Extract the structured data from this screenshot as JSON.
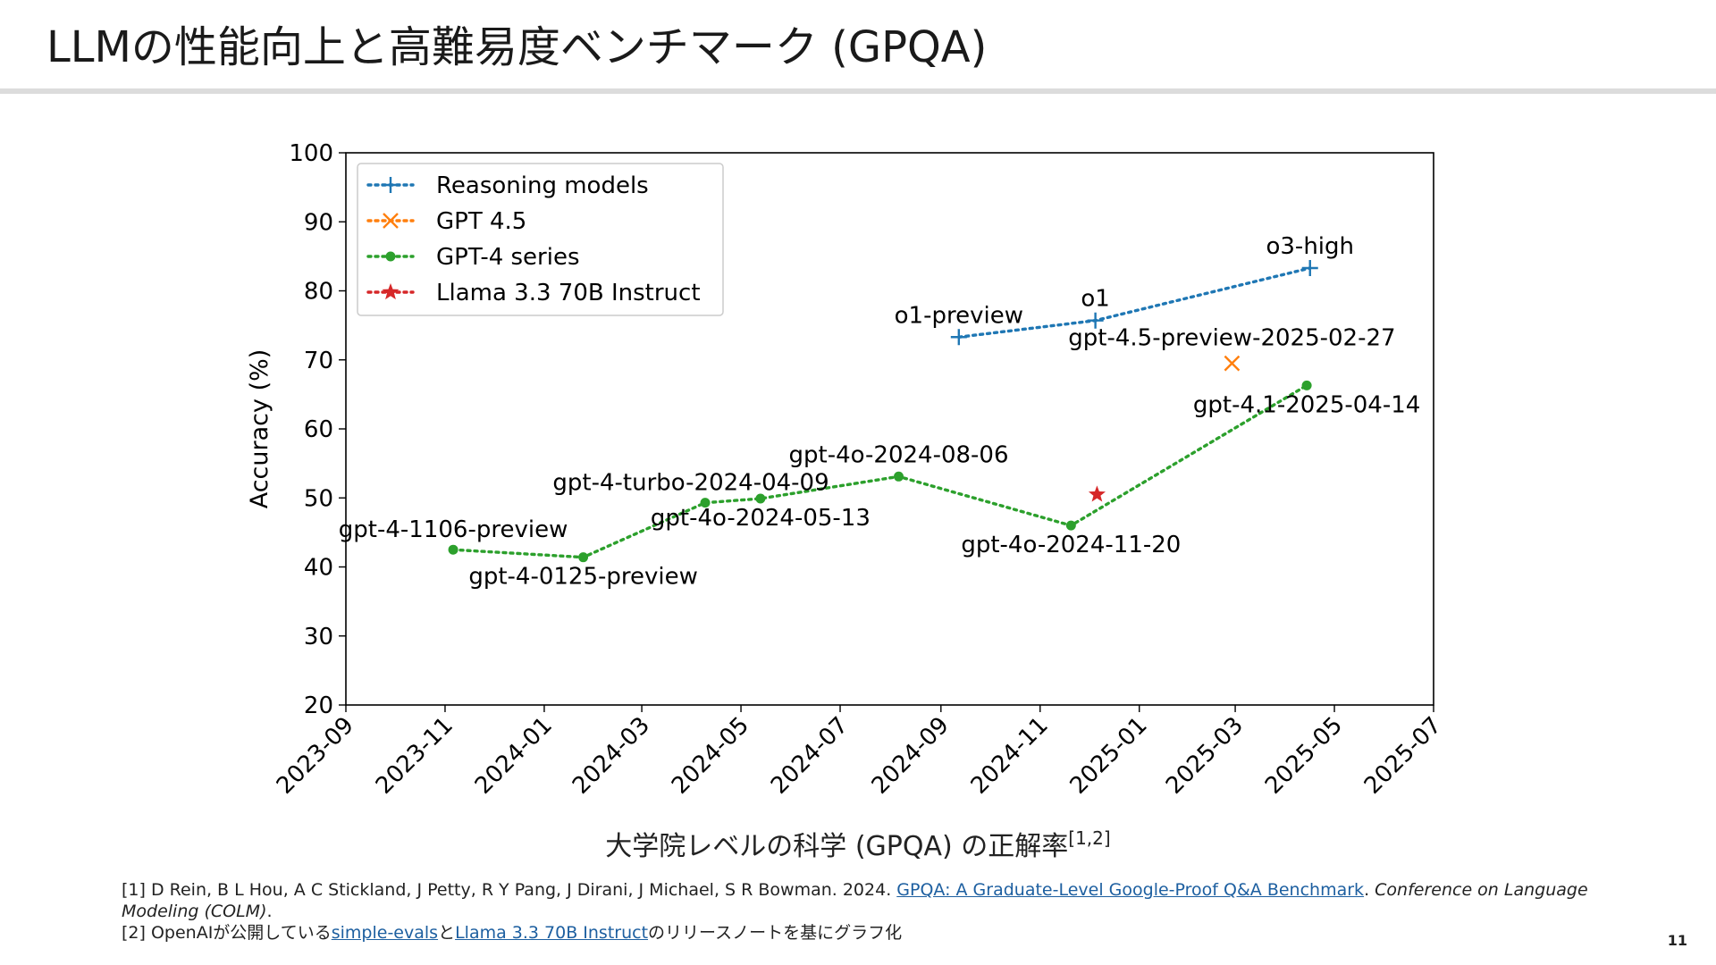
{
  "slide": {
    "title": "LLMの性能向上と高難易度ベンチマーク (GPQA)",
    "caption": "大学院レベルの科学 (GPQA) の正解率",
    "caption_sup": "[1,2]",
    "page_number": "11"
  },
  "references": {
    "ref1": {
      "prefix": "[1] D Rein, B L Hou, A C Stickland, J Petty, R Y Pang, J Dirani, J Michael, S R Bowman. 2024. ",
      "link": "GPQA: A Graduate-Level Google-Proof Q&A Benchmark",
      "after": ". ",
      "venue": "Conference on Language Modeling (COLM)",
      "end": "."
    },
    "ref2": {
      "prefix": "[2] OpenAIが公開している",
      "link1": "simple-evals",
      "mid": "と",
      "link2": "Llama 3.3 70B Instruct",
      "suffix": "のリリースノートを基にグラフ化"
    }
  },
  "chart_data": {
    "type": "line",
    "xlabel": "",
    "ylabel": "Accuracy (%)",
    "ylim": [
      20,
      100
    ],
    "yticks": [
      20,
      30,
      40,
      50,
      60,
      70,
      80,
      90,
      100
    ],
    "xlim": [
      "2023-09-01",
      "2025-07-01"
    ],
    "xticks": [
      "2023-09",
      "2023-11",
      "2024-01",
      "2024-03",
      "2024-05",
      "2024-07",
      "2024-09",
      "2024-11",
      "2025-01",
      "2025-03",
      "2025-05",
      "2025-07"
    ],
    "grid": false,
    "legend_position": "top-left",
    "series": [
      {
        "name": "Reasoning models",
        "color": "#1f77b4",
        "marker": "plus",
        "points": [
          {
            "date": "2024-09-12",
            "value": 73.3,
            "label": "o1-preview"
          },
          {
            "date": "2024-12-05",
            "value": 75.7,
            "label": "o1"
          },
          {
            "date": "2025-04-16",
            "value": 83.3,
            "label": "o3-high"
          }
        ]
      },
      {
        "name": "GPT 4.5",
        "color": "#ff7f0e",
        "marker": "x",
        "points": [
          {
            "date": "2025-02-27",
            "value": 69.5,
            "label": "gpt-4.5-preview-2025-02-27"
          }
        ]
      },
      {
        "name": "GPT-4 series",
        "color": "#2ca02c",
        "marker": "dot",
        "points": [
          {
            "date": "2023-11-06",
            "value": 42.5,
            "label": "gpt-4-1106-preview"
          },
          {
            "date": "2024-01-25",
            "value": 41.4,
            "label": "gpt-4-0125-preview"
          },
          {
            "date": "2024-04-09",
            "value": 49.3,
            "label": "gpt-4-turbo-2024-04-09"
          },
          {
            "date": "2024-05-13",
            "value": 49.9,
            "label": "gpt-4o-2024-05-13"
          },
          {
            "date": "2024-08-06",
            "value": 53.1,
            "label": "gpt-4o-2024-08-06"
          },
          {
            "date": "2024-11-20",
            "value": 46.0,
            "label": "gpt-4o-2024-11-20"
          },
          {
            "date": "2025-04-14",
            "value": 66.3,
            "label": "gpt-4.1-2025-04-14"
          }
        ]
      },
      {
        "name": "Llama 3.3 70B Instruct",
        "color": "#d62728",
        "marker": "star",
        "points": [
          {
            "date": "2024-12-06",
            "value": 50.5,
            "label": ""
          }
        ]
      }
    ]
  }
}
